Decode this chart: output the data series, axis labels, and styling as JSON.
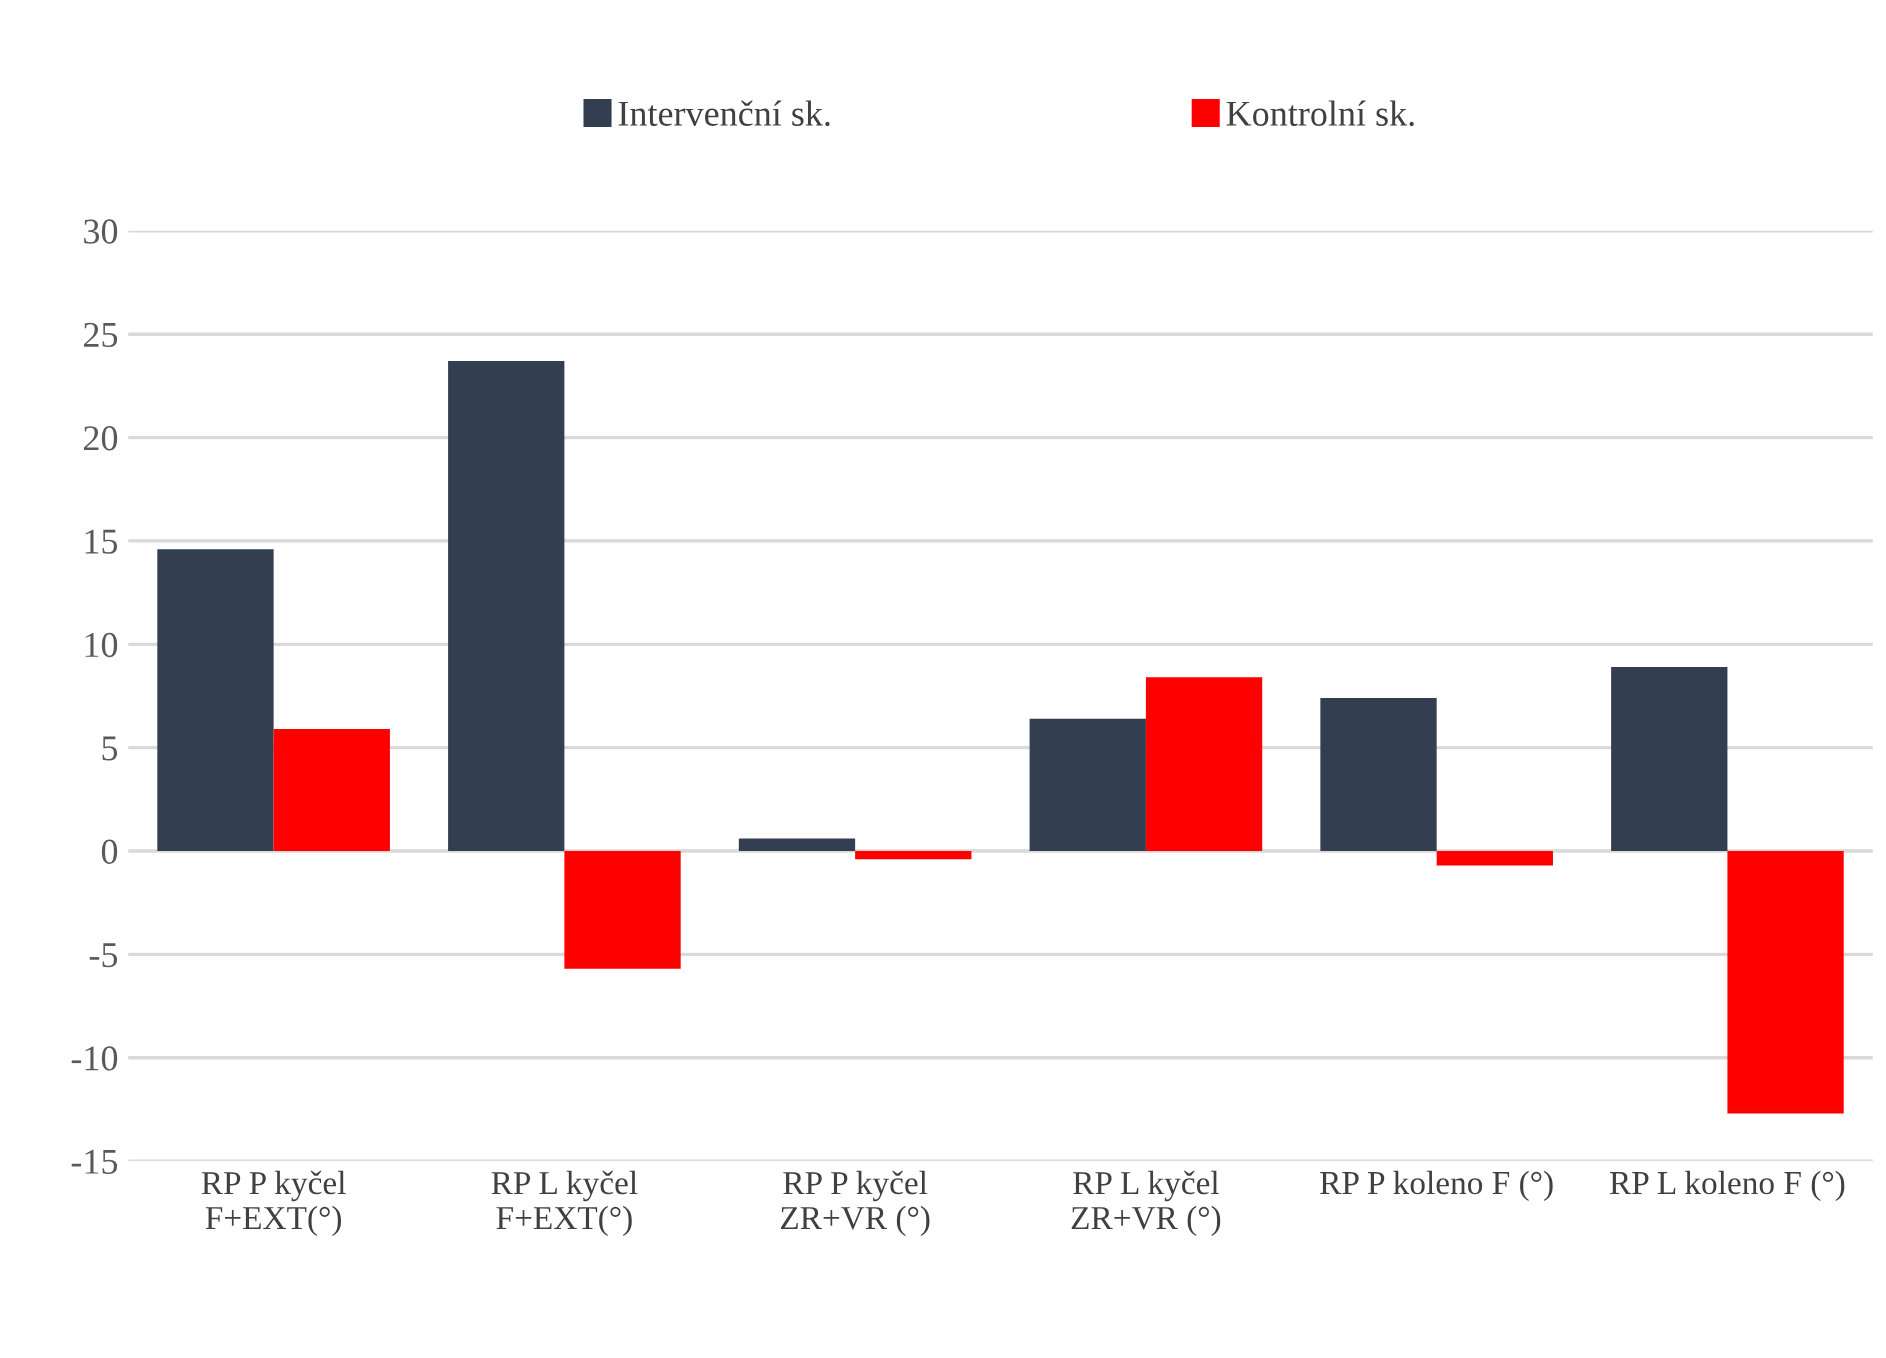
{
  "chart_data": {
    "type": "bar",
    "categories": [
      "RP P kyčel\nF+EXT(°)",
      "RP L kyčel\nF+EXT(°)",
      "RP P kyčel\nZR+VR (°)",
      "RP L kyčel\nZR+VR (°)",
      "RP P koleno F (°)",
      "RP L koleno F (°)"
    ],
    "series": [
      {
        "name": "Intervenční sk.",
        "color": "#333f50",
        "values": [
          14.6,
          23.7,
          0.6,
          6.4,
          7.4,
          8.9
        ]
      },
      {
        "name": "Kontrolní sk.",
        "color": "#ff0000",
        "values": [
          5.9,
          -5.7,
          -0.4,
          8.4,
          -0.7,
          -12.7
        ]
      }
    ],
    "ylim": [
      -15,
      30
    ],
    "yticks": [
      -15,
      -10,
      -5,
      0,
      5,
      10,
      15,
      20,
      25,
      30
    ],
    "grid": "y",
    "legend": "top"
  }
}
